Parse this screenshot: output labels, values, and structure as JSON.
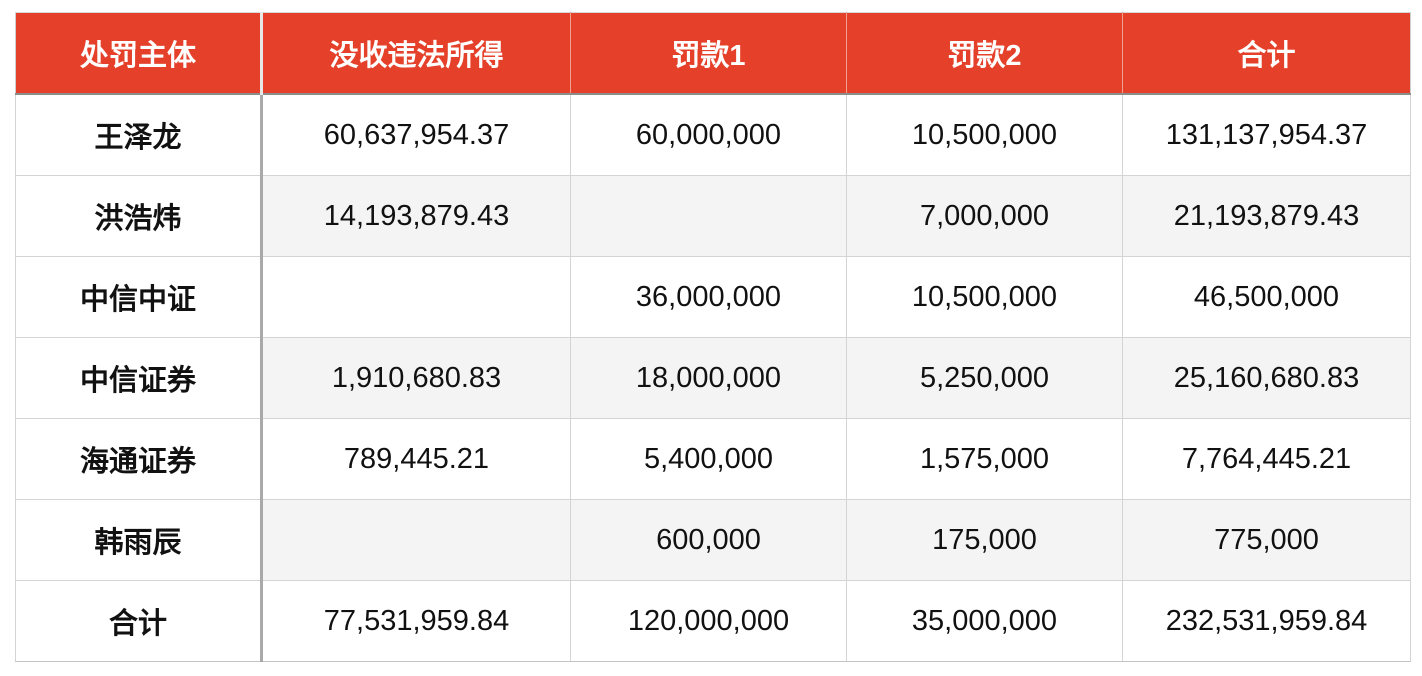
{
  "table": {
    "header_color": "#e5412a",
    "columns": [
      "处罚主体",
      "没收违法所得",
      "罚款1",
      "罚款2",
      "合计"
    ],
    "rows": [
      {
        "entity": "王泽龙",
        "confiscated": "60,637,954.37",
        "fine1": "60,000,000",
        "fine2": "10,500,000",
        "total": "131,137,954.37"
      },
      {
        "entity": "洪浩炜",
        "confiscated": "14,193,879.43",
        "fine1": "",
        "fine2": "7,000,000",
        "total": "21,193,879.43"
      },
      {
        "entity": "中信中证",
        "confiscated": "",
        "fine1": "36,000,000",
        "fine2": "10,500,000",
        "total": "46,500,000"
      },
      {
        "entity": "中信证券",
        "confiscated": "1,910,680.83",
        "fine1": "18,000,000",
        "fine2": "5,250,000",
        "total": "25,160,680.83"
      },
      {
        "entity": "海通证券",
        "confiscated": "789,445.21",
        "fine1": "5,400,000",
        "fine2": "1,575,000",
        "total": "7,764,445.21"
      },
      {
        "entity": "韩雨辰",
        "confiscated": "",
        "fine1": "600,000",
        "fine2": "175,000",
        "total": "775,000"
      },
      {
        "entity": "合计",
        "confiscated": "77,531,959.84",
        "fine1": "120,000,000",
        "fine2": "35,000,000",
        "total": "232,531,959.84"
      }
    ]
  }
}
